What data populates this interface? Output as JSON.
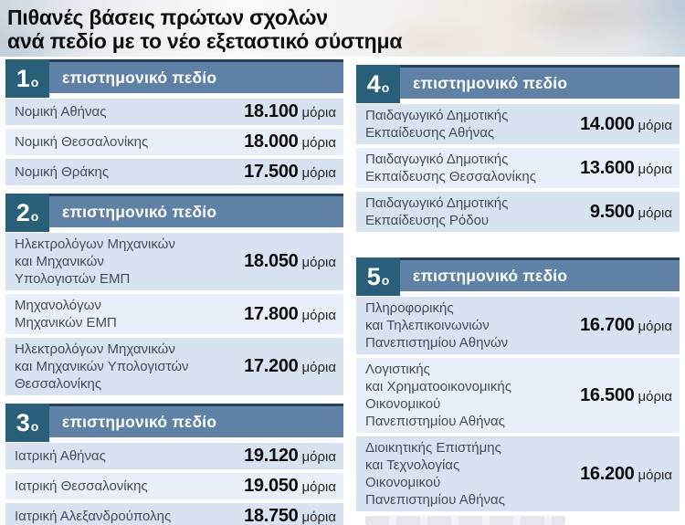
{
  "title": {
    "line1": "Πιθανές βάσεις πρώτων σχολών",
    "line2": "ανά πεδίο με το νέο εξεταστικό σύστημα"
  },
  "colors": {
    "ordinal_box": "#2a5f7a",
    "header_bar": "#5e81a5",
    "header_bar_edge": "#24415f",
    "row_odd": "#d8e2f0",
    "row_even": "#e9eff8"
  },
  "columns": {
    "left": [
      {
        "ordinal": "1",
        "suffix": "ο",
        "label": "επιστημονικό πεδίο",
        "rows": [
          {
            "name": "Νομική Αθήνας",
            "value": "18.100",
            "unit": "μόρια"
          },
          {
            "name": "Νομική Θεσσαλονίκης",
            "value": "18.000",
            "unit": "μόρια"
          },
          {
            "name": "Νομική Θράκης",
            "value": "17.500",
            "unit": "μόρια"
          }
        ]
      },
      {
        "ordinal": "2",
        "suffix": "ο",
        "label": "επιστημονικό πεδίο",
        "rows": [
          {
            "name": "Ηλεκτρολόγων Μηχανικών\nκαι Μηχανικών\nΥπολογιστών ΕΜΠ",
            "value": "18.050",
            "unit": "μόρια"
          },
          {
            "name": "Μηχανολόγων\nΜηχανικών ΕΜΠ",
            "value": "17.800",
            "unit": "μόρια"
          },
          {
            "name": "Ηλεκτρολόγων Μηχανικών\nκαι Μηχανικών Υπολογιστών\nΘεσσαλονίκης",
            "value": "17.200",
            "unit": "μόρια"
          }
        ]
      },
      {
        "ordinal": "3",
        "suffix": "ο",
        "label": "επιστημονικό πεδίο",
        "rows": [
          {
            "name": "Ιατρική Αθήνας",
            "value": "19.120",
            "unit": "μόρια"
          },
          {
            "name": "Ιατρική Θεσσαλονίκης",
            "value": "19.050",
            "unit": "μόρια"
          },
          {
            "name": "Ιατρική Αλεξανδρούπολης",
            "value": "18.750",
            "unit": "μόρια"
          }
        ]
      }
    ],
    "right": [
      {
        "ordinal": "4",
        "suffix": "ο",
        "label": "επιστημονικό πεδίο",
        "rows": [
          {
            "name": "Παιδαγωγικό Δημοτικής\nΕκπαίδευσης Αθήνας",
            "value": "14.000",
            "unit": "μόρια"
          },
          {
            "name": "Παιδαγωγικό Δημοτικής\nΕκπαίδευσης Θεσσαλονίκης",
            "value": "13.600",
            "unit": "μόρια"
          },
          {
            "name": "Παιδαγωγικό Δημοτικής\nΕκπαίδευσης Ρόδου",
            "value": "9.500",
            "unit": "μόρια"
          }
        ]
      },
      {
        "ordinal": "5",
        "suffix": "ο",
        "label": "επιστημονικό πεδίο",
        "rows": [
          {
            "name": "Πληροφορικής\nκαι Τηλεπικοινωνιών\nΠανεπιστημίου Αθηνών",
            "value": "16.700",
            "unit": "μόρια"
          },
          {
            "name": "Λογιστικής\nκαι Χρηματοοικονομικής\nΟικονομικού\nΠανεπιστημίου Αθήνας",
            "value": "16.500",
            "unit": "μόρια"
          },
          {
            "name": "Διοικητικής Επιστήμης\nκαι Τεχνολογίας\nΟικονομικού\nΠανεπιστημίου Αθήνας",
            "value": "16.200",
            "unit": "μόρια"
          }
        ]
      }
    ]
  },
  "chart_data": {
    "type": "table",
    "title": "Πιθανές βάσεις πρώτων σχολών ανά πεδίο με το νέο εξεταστικό σύστημα",
    "unit": "μόρια",
    "sections": [
      {
        "section": "1ο επιστημονικό πεδίο",
        "rows": [
          [
            "Νομική Αθήνας",
            18100
          ],
          [
            "Νομική Θεσσαλονίκης",
            18000
          ],
          [
            "Νομική Θράκης",
            17500
          ]
        ]
      },
      {
        "section": "2ο επιστημονικό πεδίο",
        "rows": [
          [
            "Ηλεκτρολόγων Μηχανικών και Μηχανικών Υπολογιστών ΕΜΠ",
            18050
          ],
          [
            "Μηχανολόγων Μηχανικών ΕΜΠ",
            17800
          ],
          [
            "Ηλεκτρολόγων Μηχανικών και Μηχανικών Υπολογιστών Θεσσαλονίκης",
            17200
          ]
        ]
      },
      {
        "section": "3ο επιστημονικό πεδίο",
        "rows": [
          [
            "Ιατρική Αθήνας",
            19120
          ],
          [
            "Ιατρική Θεσσαλονίκης",
            19050
          ],
          [
            "Ιατρική Αλεξανδρούπολης",
            18750
          ]
        ]
      },
      {
        "section": "4ο επιστημονικό πεδίο",
        "rows": [
          [
            "Παιδαγωγικό Δημοτικής Εκπαίδευσης Αθήνας",
            14000
          ],
          [
            "Παιδαγωγικό Δημοτικής Εκπαίδευσης Θεσσαλονίκης",
            13600
          ],
          [
            "Παιδαγωγικό Δημοτικής Εκπαίδευσης Ρόδου",
            9500
          ]
        ]
      },
      {
        "section": "5ο επιστημονικό πεδίο",
        "rows": [
          [
            "Πληροφορικής και Τηλεπικοινωνιών Πανεπιστημίου Αθηνών",
            16700
          ],
          [
            "Λογιστικής και Χρηματοοικονομικής Οικονομικού Πανεπιστημίου Αθήνας",
            16500
          ],
          [
            "Διοικητικής Επιστήμης και Τεχνολογίας Οικονομικού Πανεπιστημίου Αθήνας",
            16200
          ]
        ]
      }
    ]
  }
}
